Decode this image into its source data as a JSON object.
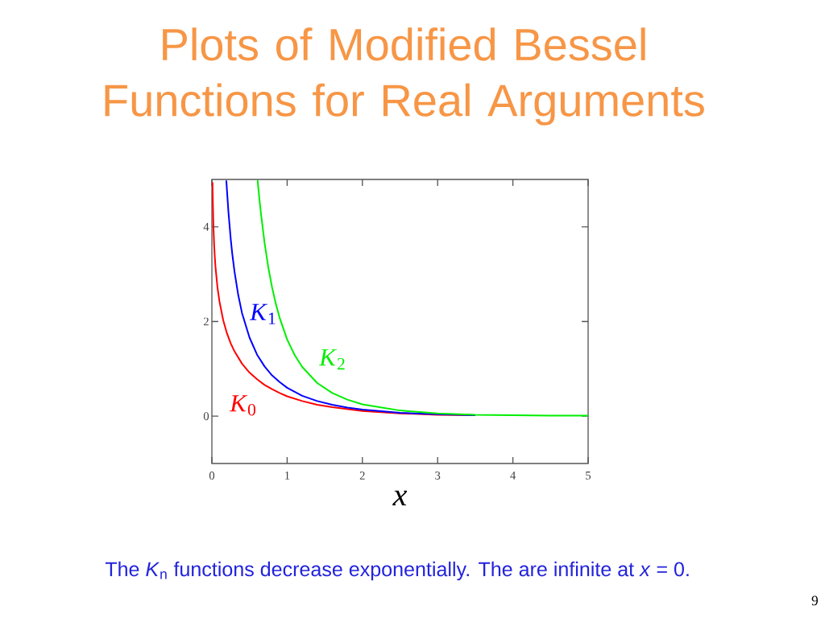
{
  "chart_data": {
    "type": "line",
    "title": "Plots of Modified Bessel Functions for Real Arguments",
    "xlabel": "x",
    "xlim": [
      0,
      5
    ],
    "ylim": [
      -1,
      5
    ],
    "xticks": [
      0,
      1,
      2,
      3,
      4,
      5
    ],
    "yticks": [
      0,
      2,
      4
    ],
    "annotations": [
      "The *K*$_{n}$ functions decrease exponentially. The are infinite at *x* = 0.",
      "9"
    ],
    "series": [
      {
        "name": "*K*$_{0}$",
        "color": "#ff0000",
        "x": [
          0.008,
          0.01,
          0.02,
          0.03,
          0.04,
          0.05,
          0.075,
          0.1,
          0.15,
          0.2,
          0.25,
          0.3,
          0.4,
          0.5,
          0.6,
          0.7,
          0.8,
          0.9,
          1.0,
          1.2,
          1.4,
          1.6,
          1.8,
          2.0,
          2.5,
          3.0,
          3.5
        ],
        "values": [
          4.94,
          4.72,
          4.03,
          3.62,
          3.33,
          3.11,
          2.71,
          2.43,
          2.03,
          1.75,
          1.54,
          1.37,
          1.11,
          0.92,
          0.78,
          0.66,
          0.57,
          0.49,
          0.42,
          0.32,
          0.24,
          0.19,
          0.15,
          0.11,
          0.06,
          0.03,
          0.02
        ]
      },
      {
        "name": "*K*$_{1}$",
        "color": "#0000ff",
        "x": [
          0.192,
          0.2,
          0.22,
          0.25,
          0.27,
          0.3,
          0.35,
          0.4,
          0.5,
          0.6,
          0.7,
          0.8,
          0.9,
          1.0,
          1.2,
          1.4,
          1.6,
          1.8,
          2.0,
          2.5,
          3.0,
          3.5
        ],
        "values": [
          4.98,
          4.78,
          4.31,
          3.75,
          3.44,
          3.06,
          2.56,
          2.18,
          1.66,
          1.3,
          1.05,
          0.86,
          0.72,
          0.6,
          0.43,
          0.32,
          0.24,
          0.18,
          0.14,
          0.07,
          0.04,
          0.02
        ]
      },
      {
        "name": "*K*$_{2}$",
        "color": "#00ee00",
        "x": [
          0.607,
          0.63,
          0.65,
          0.7,
          0.75,
          0.8,
          0.85,
          0.9,
          1.0,
          1.1,
          1.2,
          1.4,
          1.6,
          1.8,
          2.0,
          2.5,
          3.0,
          3.5,
          4.0,
          4.5,
          5.0
        ],
        "values": [
          4.99,
          4.61,
          4.31,
          3.66,
          3.14,
          2.72,
          2.37,
          2.08,
          1.62,
          1.29,
          1.04,
          0.7,
          0.49,
          0.35,
          0.25,
          0.12,
          0.06,
          0.03,
          0.02,
          0.01,
          0.01
        ]
      }
    ]
  }
}
